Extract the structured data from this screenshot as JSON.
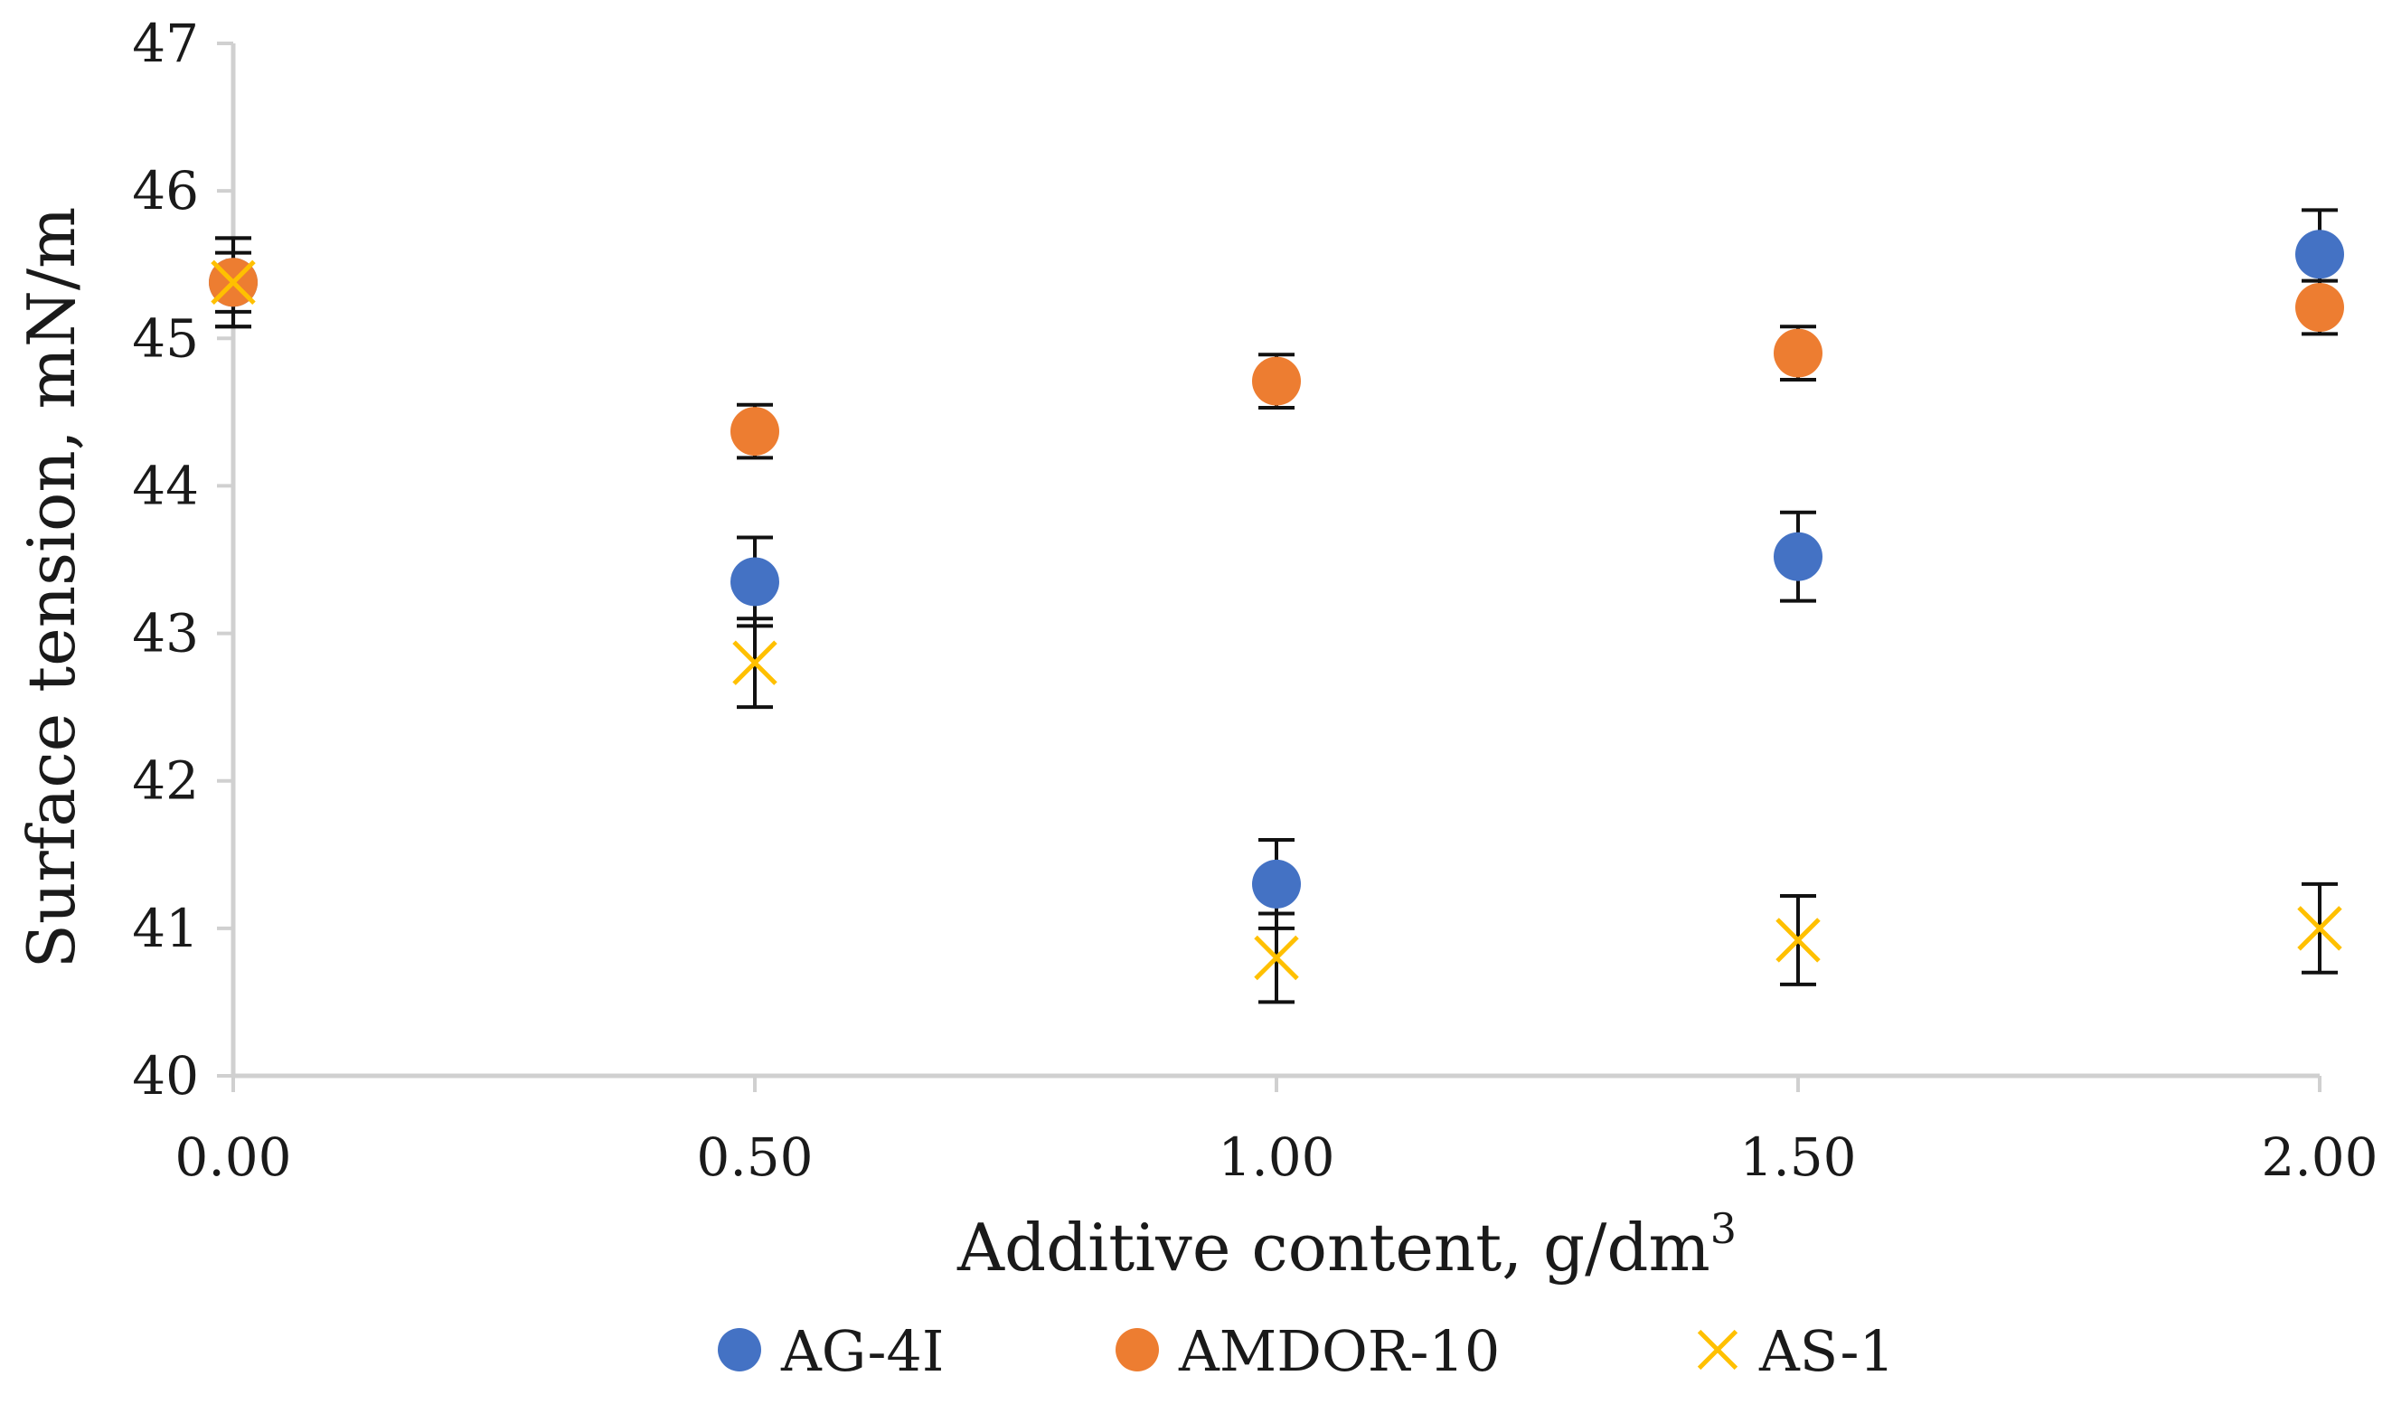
{
  "chart_data": {
    "type": "scatter",
    "title": "",
    "xlabel": "Additive content, g/dm",
    "xlabel_superscript": "3",
    "ylabel": "Surface tension, mN/m",
    "xlim": [
      0,
      2
    ],
    "ylim": [
      40,
      47
    ],
    "x_ticks": [
      "0.00",
      "0.50",
      "1.00",
      "1.50",
      "2.00"
    ],
    "y_ticks": [
      "40",
      "41",
      "42",
      "43",
      "44",
      "45",
      "46",
      "47"
    ],
    "grid": false,
    "legend_position": "bottom",
    "series": [
      {
        "name": "AG-4I",
        "marker": "circle",
        "color": "#4472C4",
        "points": [
          {
            "x": 0.0,
            "y": 45.38,
            "err": 0.3
          },
          {
            "x": 0.5,
            "y": 43.35,
            "err": 0.3
          },
          {
            "x": 1.0,
            "y": 41.3,
            "err": 0.3
          },
          {
            "x": 1.5,
            "y": 43.52,
            "err": 0.3
          },
          {
            "x": 2.0,
            "y": 45.57,
            "err": 0.3
          }
        ]
      },
      {
        "name": "AMDOR-10",
        "marker": "circle",
        "color": "#ED7D31",
        "points": [
          {
            "x": 0.0,
            "y": 45.38,
            "err": 0.2
          },
          {
            "x": 0.5,
            "y": 44.37,
            "err": 0.18
          },
          {
            "x": 1.0,
            "y": 44.71,
            "err": 0.18
          },
          {
            "x": 1.5,
            "y": 44.9,
            "err": 0.18
          },
          {
            "x": 2.0,
            "y": 45.21,
            "err": 0.18
          }
        ]
      },
      {
        "name": "AS-1",
        "marker": "x",
        "color": "#FFC000",
        "points": [
          {
            "x": 0.0,
            "y": 45.38,
            "err": 0.3
          },
          {
            "x": 0.5,
            "y": 42.8,
            "err": 0.3
          },
          {
            "x": 1.0,
            "y": 40.8,
            "err": 0.3
          },
          {
            "x": 1.5,
            "y": 40.92,
            "err": 0.3
          },
          {
            "x": 2.0,
            "y": 41.0,
            "err": 0.3
          }
        ]
      }
    ]
  }
}
